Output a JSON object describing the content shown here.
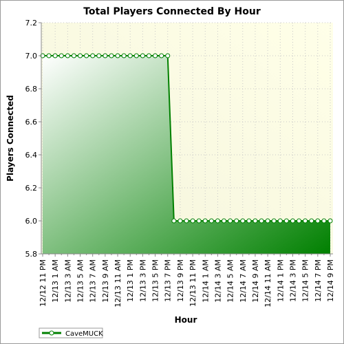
{
  "chart_data": {
    "type": "area",
    "title": "Total Players Connected By Hour",
    "x_label": "Hour",
    "y_label": "Players Connected",
    "categories": [
      "12/12 11 PM",
      null,
      "12/13 1 AM",
      null,
      "12/13 3 AM",
      null,
      "12/13 5 AM",
      null,
      "12/13 7 AM",
      null,
      "12/13 9 AM",
      null,
      "12/13 11 AM",
      null,
      "12/13 1 PM",
      null,
      "12/13 3 PM",
      null,
      "12/13 5 PM",
      null,
      "12/13 7 PM",
      null,
      "12/13 9 PM",
      null,
      "12/13 11 PM",
      null,
      "12/14 1 AM",
      null,
      "12/14 3 AM",
      null,
      "12/14 5 AM",
      null,
      "12/14 7 AM",
      null,
      "12/14 9 AM",
      null,
      "12/14 11 AM",
      null,
      "12/14 1 PM",
      null,
      "12/14 3 PM",
      null,
      "12/14 5 PM",
      null,
      "12/14 7 PM",
      null,
      "12/14 9 PM"
    ],
    "series": [
      {
        "name": "CaveMUCK",
        "color": "#008000",
        "values": [
          7,
          7,
          7,
          7,
          7,
          7,
          7,
          7,
          7,
          7,
          7,
          7,
          7,
          7,
          7,
          7,
          7,
          7,
          7,
          7,
          7,
          6,
          6,
          6,
          6,
          6,
          6,
          6,
          6,
          6,
          6,
          6,
          6,
          6,
          6,
          6,
          6,
          6,
          6,
          6,
          6,
          6,
          6,
          6,
          6,
          6,
          6
        ]
      }
    ],
    "ylim": [
      5.8,
      7.2
    ],
    "yticks": [
      5.8,
      {
        "value": 6,
        "label": "6.0"
      },
      6.2,
      6.4,
      6.6,
      6.8,
      {
        "value": 7,
        "label": "7.0"
      },
      7.2
    ],
    "grid": true,
    "legend": "bottom-left"
  }
}
